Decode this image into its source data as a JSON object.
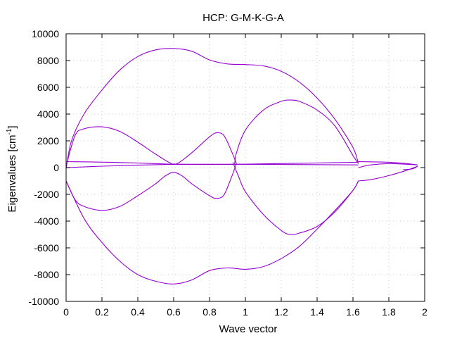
{
  "chart_data": {
    "type": "line",
    "title": "HCP: G-M-K-G-A",
    "xlabel": "Wave vector",
    "ylabel_main": "Eigenvalues [cm",
    "ylabel_sup": "-1",
    "ylabel_end": "]",
    "xlim": [
      0,
      2
    ],
    "ylim": [
      -10000,
      10000
    ],
    "x_ticks": [
      "0",
      "0.2",
      "0.4",
      "0.6",
      "0.8",
      "1",
      "1.2",
      "1.4",
      "1.6",
      "1.8",
      "2"
    ],
    "y_ticks": [
      "10000",
      "8000",
      "6000",
      "4000",
      "2000",
      "0",
      "-2000",
      "-4000",
      "-6000",
      "-8000",
      "-10000"
    ],
    "grid": true,
    "series_color": "#9400d3",
    "series": [
      {
        "points": [
          [
            0,
            -100
          ],
          [
            0.03,
            2000
          ],
          [
            0.1,
            4000
          ],
          [
            0.2,
            5800
          ],
          [
            0.3,
            7300
          ],
          [
            0.4,
            8300
          ],
          [
            0.5,
            8800
          ],
          [
            0.6,
            8900
          ],
          [
            0.7,
            8700
          ],
          [
            0.8,
            8050
          ],
          [
            0.9,
            7750
          ],
          [
            1.0,
            7700
          ],
          [
            1.1,
            7600
          ],
          [
            1.2,
            7200
          ],
          [
            1.3,
            6400
          ],
          [
            1.4,
            5200
          ],
          [
            1.5,
            3600
          ],
          [
            1.6,
            1500
          ],
          [
            1.63,
            300
          ]
        ]
      },
      {
        "points": [
          [
            0,
            100
          ],
          [
            0.05,
            2400
          ],
          [
            0.1,
            2900
          ],
          [
            0.2,
            3050
          ],
          [
            0.3,
            2700
          ],
          [
            0.4,
            1900
          ],
          [
            0.5,
            1000
          ],
          [
            0.58,
            350
          ],
          [
            0.62,
            300
          ],
          [
            0.7,
            1100
          ],
          [
            0.8,
            2300
          ],
          [
            0.84,
            2600
          ],
          [
            0.88,
            2400
          ],
          [
            0.92,
            1300
          ],
          [
            0.95,
            300
          ]
        ]
      },
      {
        "points": [
          [
            0.94,
            250
          ],
          [
            0.95,
            1100
          ],
          [
            1.0,
            2800
          ],
          [
            1.1,
            4300
          ],
          [
            1.2,
            4950
          ],
          [
            1.25,
            5050
          ],
          [
            1.3,
            4950
          ],
          [
            1.4,
            4300
          ],
          [
            1.5,
            3100
          ],
          [
            1.6,
            900
          ],
          [
            1.63,
            300
          ]
        ]
      },
      {
        "points": [
          [
            0,
            -1000
          ],
          [
            0.05,
            -2400
          ],
          [
            0.1,
            -2900
          ],
          [
            0.2,
            -3200
          ],
          [
            0.3,
            -2900
          ],
          [
            0.4,
            -2100
          ],
          [
            0.5,
            -1200
          ],
          [
            0.55,
            -650
          ],
          [
            0.6,
            -350
          ],
          [
            0.65,
            -650
          ],
          [
            0.7,
            -1200
          ],
          [
            0.8,
            -2100
          ],
          [
            0.84,
            -2300
          ],
          [
            0.88,
            -2050
          ],
          [
            0.92,
            -800
          ],
          [
            0.95,
            300
          ]
        ]
      },
      {
        "points": [
          [
            0.93,
            400
          ],
          [
            0.96,
            -600
          ],
          [
            1.0,
            -1800
          ],
          [
            1.1,
            -3500
          ],
          [
            1.2,
            -4700
          ],
          [
            1.25,
            -5000
          ],
          [
            1.3,
            -4900
          ],
          [
            1.4,
            -4400
          ],
          [
            1.5,
            -3300
          ],
          [
            1.6,
            -1700
          ],
          [
            1.63,
            -1000
          ]
        ]
      },
      {
        "points": [
          [
            0,
            -1000
          ],
          [
            0.1,
            -3800
          ],
          [
            0.2,
            -5600
          ],
          [
            0.3,
            -7000
          ],
          [
            0.4,
            -8000
          ],
          [
            0.5,
            -8500
          ],
          [
            0.6,
            -8700
          ],
          [
            0.7,
            -8400
          ],
          [
            0.8,
            -7700
          ],
          [
            0.9,
            -7500
          ],
          [
            1.0,
            -7600
          ],
          [
            1.1,
            -7400
          ],
          [
            1.2,
            -6800
          ],
          [
            1.3,
            -5900
          ],
          [
            1.4,
            -4600
          ],
          [
            1.5,
            -3200
          ],
          [
            1.6,
            -1700
          ],
          [
            1.63,
            -1000
          ]
        ]
      },
      {
        "points": [
          [
            0,
            450
          ],
          [
            0.3,
            380
          ],
          [
            0.6,
            250
          ],
          [
            0.63,
            250
          ],
          [
            0.95,
            250
          ],
          [
            1.63,
            400
          ]
        ]
      },
      {
        "points": [
          [
            0,
            0
          ],
          [
            0.3,
            150
          ],
          [
            0.6,
            250
          ]
        ]
      },
      {
        "points": [
          [
            0.6,
            300
          ],
          [
            0.64,
            250
          ],
          [
            0.95,
            250
          ],
          [
            1.63,
            200
          ]
        ]
      },
      {
        "points": [
          [
            1.63,
            450
          ],
          [
            1.8,
            400
          ],
          [
            1.9,
            300
          ],
          [
            1.96,
            200
          ]
        ]
      },
      {
        "points": [
          [
            1.63,
            -1000
          ],
          [
            1.7,
            -900
          ],
          [
            1.8,
            -600
          ],
          [
            1.9,
            -200
          ],
          [
            1.96,
            100
          ]
        ]
      },
      {
        "points": [
          [
            1.63,
            0
          ],
          [
            1.7,
            200
          ],
          [
            1.8,
            300
          ],
          [
            1.9,
            250
          ],
          [
            1.96,
            200
          ]
        ]
      },
      {
        "points": [
          [
            1.96,
            100
          ],
          [
            1.93,
            -100
          ],
          [
            1.88,
            -150
          ]
        ]
      }
    ]
  }
}
